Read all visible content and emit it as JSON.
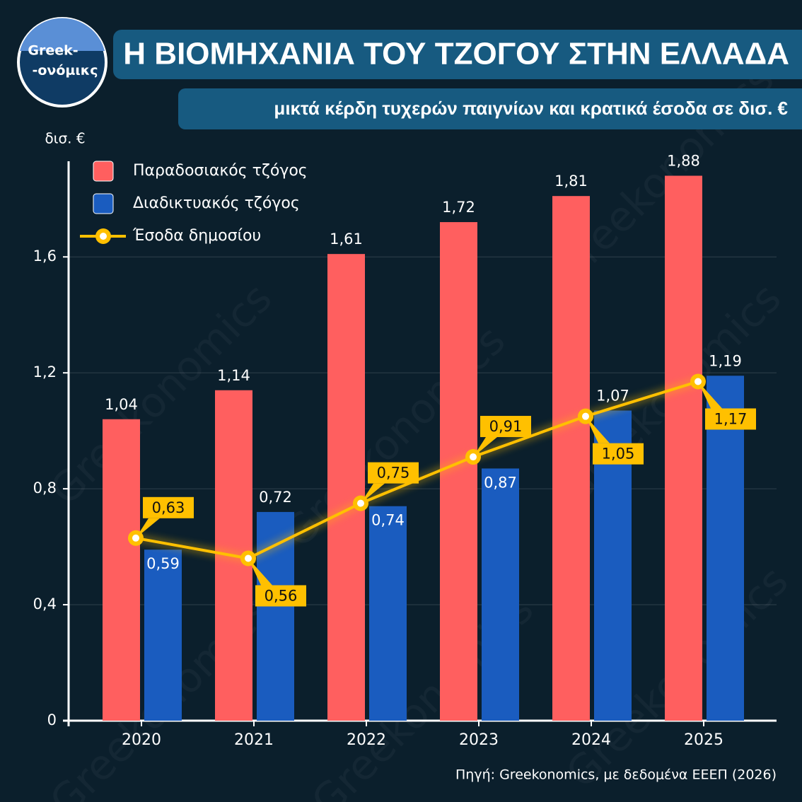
{
  "logo": [
    "Greek-",
    "-ονόμικς"
  ],
  "watermark": "Greekonomics",
  "chart_data": {
    "type": "bar",
    "title": "Η ΒΙΟΜΗΧΑΝΙΑ ΤΟΥ ΤΖΟΓΟΥ ΣΤΗΝ ΕΛΛΑΔΑ",
    "subtitle": "μικτά κέρδη τυχερών παιγνίων και κρατικά έσοδα σε δισ. €",
    "y_label": "δισ. €",
    "source": "Πηγή: Greekonomics, με δεδομένα ΕΕΕΠ (2026)",
    "categories": [
      "2020",
      "2021",
      "2022",
      "2023",
      "2024",
      "2025"
    ],
    "series": [
      {
        "name": "Παραδοσιακός τζόγος",
        "color": "#ff5f5f",
        "values": [
          1.04,
          1.14,
          1.61,
          1.72,
          1.81,
          1.88
        ],
        "value_labels": [
          "1,04",
          "1,14",
          "1,61",
          "1,72",
          "1,81",
          "1,88"
        ]
      },
      {
        "name": "Διαδικτυακός τζόγος",
        "color": "#1a5cbf",
        "values": [
          0.59,
          0.72,
          0.74,
          0.87,
          1.07,
          1.19
        ],
        "value_labels": [
          "0,59",
          "0,72",
          "0,74",
          "0,87",
          "1,07",
          "1,19"
        ]
      },
      {
        "name": "Έσοδα δημοσίου",
        "type": "line",
        "color": "#ffc000",
        "values": [
          0.63,
          0.56,
          0.75,
          0.91,
          1.05,
          1.17
        ],
        "value_labels": [
          "0,63",
          "0,56",
          "0,75",
          "0,91",
          "1,05",
          "1,17"
        ]
      }
    ],
    "ylim": [
      0,
      1.93
    ],
    "yticks": [
      0,
      {
        "value": 0.4,
        "label": "0,4"
      },
      {
        "value": 0.8,
        "label": "0,8"
      },
      {
        "value": 1.2,
        "label": "1,2"
      },
      {
        "value": 1.6,
        "label": "1,6"
      }
    ],
    "grid": true
  }
}
